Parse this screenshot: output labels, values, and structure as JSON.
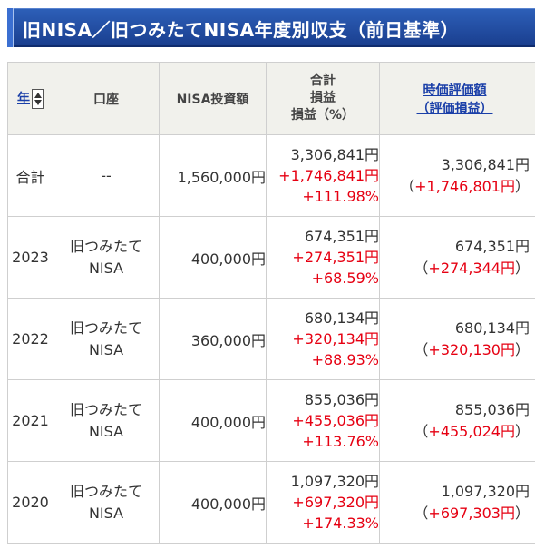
{
  "header": {
    "title": "旧NISA／旧つみたてNISA年度別収支（前日基準）"
  },
  "table": {
    "columns": {
      "year": "年",
      "account": "口座",
      "investment": "NISA投資額",
      "total_line1": "合計",
      "total_line2": "損益",
      "total_line3": "損益（%）",
      "eval_line1": "時価評価額",
      "eval_line2": "（評価損益）"
    },
    "rows": [
      {
        "year": "合計",
        "account_line1": "--",
        "account_line2": "",
        "investment": "1,560,000円",
        "total": "3,306,841円",
        "gain": "+1,746,841円",
        "gain_pct": "+111.98%",
        "eval": "3,306,841円",
        "eval_gain": "+1,746,801円"
      },
      {
        "year": "2023",
        "account_line1": "旧つみたて",
        "account_line2": "NISA",
        "investment": "400,000円",
        "total": "674,351円",
        "gain": "+274,351円",
        "gain_pct": "+68.59%",
        "eval": "674,351円",
        "eval_gain": "+274,344円"
      },
      {
        "year": "2022",
        "account_line1": "旧つみたて",
        "account_line2": "NISA",
        "investment": "360,000円",
        "total": "680,134円",
        "gain": "+320,134円",
        "gain_pct": "+88.93%",
        "eval": "680,134円",
        "eval_gain": "+320,130円"
      },
      {
        "year": "2021",
        "account_line1": "旧つみたて",
        "account_line2": "NISA",
        "investment": "400,000円",
        "total": "855,036円",
        "gain": "+455,036円",
        "gain_pct": "+113.76%",
        "eval": "855,036円",
        "eval_gain": "+455,024円"
      },
      {
        "year": "2020",
        "account_line1": "旧つみたて",
        "account_line2": "NISA",
        "investment": "400,000円",
        "total": "1,097,320円",
        "gain": "+697,320円",
        "gain_pct": "+174.33%",
        "eval": "1,097,320円",
        "eval_gain": "+697,303円"
      }
    ],
    "paren_open": "（",
    "paren_close": "）"
  },
  "colors": {
    "header_blue": "#1a3f8f",
    "link_blue": "#1a3fa8",
    "gain_red": "#e60012",
    "header_bg": "#f1f1ec"
  },
  "icons": {
    "sort": "sort-updown-icon"
  }
}
